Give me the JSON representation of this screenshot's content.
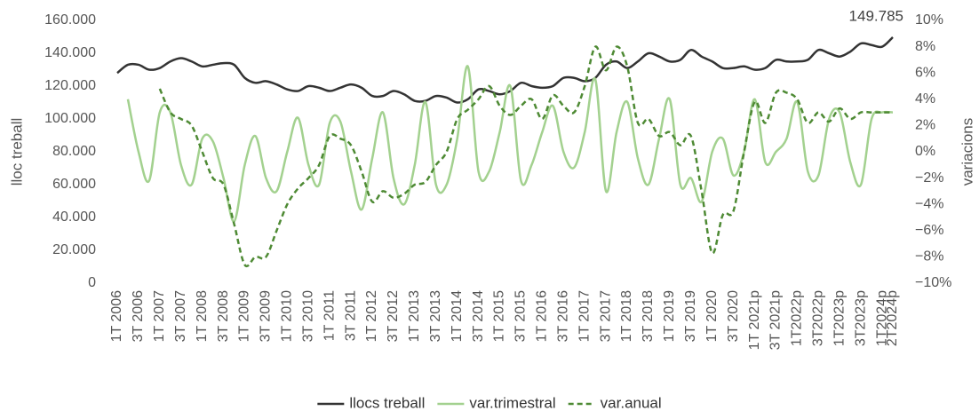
{
  "chart_data": {
    "type": "line",
    "y_label": "lloc treball",
    "y2_label": "variacions",
    "categories": [
      "1T 2006",
      null,
      "3T 2006",
      null,
      "1T 2007",
      null,
      "3T 2007",
      null,
      "1T 2008",
      null,
      "3T 2008",
      null,
      "1T 2009",
      null,
      "3T 2009",
      null,
      "1T 2010",
      null,
      "3T 2010",
      null,
      "1T 2011",
      null,
      "3T 2011",
      null,
      "1T 2012",
      null,
      "3T 2012",
      null,
      "1T 2013",
      null,
      "3T 2013",
      null,
      "1T 2014",
      null,
      "3T 2014",
      null,
      "1T 2015",
      null,
      "3T 2015",
      null,
      "1T 2016",
      null,
      "3T 2016",
      null,
      "1T 2017",
      null,
      "3T 2017",
      null,
      "1T 2018",
      null,
      "3T 2018",
      null,
      "1T 2019",
      null,
      "3T 2019",
      null,
      "1T 2020",
      null,
      "3T 2020",
      null,
      "1T 2021p",
      null,
      "3T 2021p",
      null,
      "1T2022p",
      null,
      "3T2022p",
      null,
      "1T2023p",
      null,
      "3T2023p",
      null,
      "1T2024p",
      "2T2024p"
    ],
    "series": [
      {
        "name": "llocs treball",
        "color": "#333333",
        "dash": false,
        "axis": "y",
        "values": [
          128000,
          133000,
          133000,
          130000,
          131000,
          135000,
          137000,
          135000,
          132000,
          133000,
          134000,
          133000,
          125000,
          122000,
          123000,
          121000,
          118000,
          117000,
          120000,
          119000,
          117000,
          119000,
          121000,
          119000,
          114000,
          114000,
          117000,
          115000,
          111000,
          111000,
          114000,
          113000,
          110000,
          112000,
          118000,
          117000,
          115000,
          117000,
          122000,
          120000,
          119000,
          120000,
          125000,
          125000,
          123000,
          125000,
          133000,
          135000,
          131000,
          135000,
          140000,
          138000,
          135000,
          136000,
          142000,
          138000,
          135000,
          131000,
          131000,
          132000,
          130000,
          131000,
          136000,
          135000,
          135000,
          136000,
          142000,
          140000,
          138000,
          141000,
          146000,
          145000,
          144000,
          149785
        ]
      },
      {
        "name": "var.trimestral",
        "color": "#a3d18f",
        "dash": false,
        "axis": "y2",
        "values": [
          null,
          4.0,
          0.0,
          -2.2,
          3.0,
          3.0,
          -1.0,
          -2.5,
          1.0,
          0.8,
          -2.0,
          -5.3,
          -1.0,
          1.2,
          -2.0,
          -3.0,
          0.0,
          2.6,
          -1.0,
          -2.5,
          2.2,
          2.3,
          -1.5,
          -4.4,
          -0.5,
          3.0,
          -2.0,
          -4.0,
          -1.0,
          3.8,
          -2.5,
          -2.5,
          1.0,
          6.5,
          -1.5,
          -1.5,
          1.5,
          5.0,
          -2.2,
          -1.0,
          1.5,
          3.5,
          0.0,
          -1.2,
          1.5,
          5.5,
          -3.0,
          1.5,
          3.8,
          -0.5,
          -2.5,
          1.0,
          4.0,
          -2.5,
          -2.0,
          -3.8,
          0.0,
          1.0,
          -1.8,
          0.0,
          4.0,
          -0.8,
          0.0,
          1.0,
          3.8,
          -1.5,
          -1.8,
          2.5,
          3.0,
          -0.8,
          -2.5,
          2.5,
          3.0,
          3.0
        ]
      },
      {
        "name": "var.anual",
        "color": "#4e8a34",
        "dash": true,
        "axis": "y2",
        "values": [
          null,
          null,
          null,
          null,
          4.8,
          3.0,
          2.5,
          2.0,
          0.0,
          -2.0,
          -2.5,
          -5.5,
          -8.6,
          -8.0,
          -8.0,
          -6.0,
          -4.0,
          -2.8,
          -2.0,
          -1.0,
          1.2,
          1.0,
          0.5,
          -1.5,
          -3.8,
          -3.0,
          -3.5,
          -3.2,
          -2.5,
          -2.3,
          -1.0,
          0.0,
          2.5,
          3.2,
          4.0,
          5.0,
          3.5,
          2.8,
          3.5,
          4.0,
          2.5,
          4.3,
          3.5,
          3.0,
          5.0,
          8.0,
          6.2,
          8.0,
          6.5,
          2.2,
          2.5,
          1.2,
          1.5,
          0.5,
          1.2,
          -3.0,
          -7.7,
          -4.8,
          -4.5,
          0.0,
          3.8,
          2.2,
          4.5,
          4.5,
          4.0,
          2.2,
          3.0,
          2.3,
          3.3,
          2.5,
          3.0,
          3.0,
          3.0,
          3.0
        ]
      }
    ],
    "annotations": [
      {
        "text": "149.785",
        "series": 0,
        "index": 73
      }
    ],
    "ylim": [
      0,
      160000
    ],
    "yticks": [
      0,
      {
        "value": 20000,
        "label": "20.000"
      },
      {
        "value": 40000,
        "label": "40.000"
      },
      {
        "value": 60000,
        "label": "60.000"
      },
      {
        "value": 80000,
        "label": "80.000"
      },
      {
        "value": 100000,
        "label": "100.000"
      },
      {
        "value": 120000,
        "label": "120.000"
      },
      {
        "value": 140000,
        "label": "140.000"
      },
      {
        "value": 160000,
        "label": "160.000"
      }
    ],
    "y2lim": [
      -10,
      10
    ],
    "y2ticks": [
      {
        "value": -10,
        "label": "−10%"
      },
      {
        "value": -8,
        "label": "−8%"
      },
      {
        "value": -6,
        "label": "−6%"
      },
      {
        "value": -4,
        "label": "−4%"
      },
      {
        "value": -2,
        "label": "−2%"
      },
      {
        "value": 0,
        "label": "0%"
      },
      {
        "value": 2,
        "label": "2%"
      },
      {
        "value": 4,
        "label": "4%"
      },
      {
        "value": 6,
        "label": "6%"
      },
      {
        "value": 8,
        "label": "8%"
      },
      {
        "value": 10,
        "label": "10%"
      }
    ],
    "grid": false,
    "legend": "bottom"
  }
}
